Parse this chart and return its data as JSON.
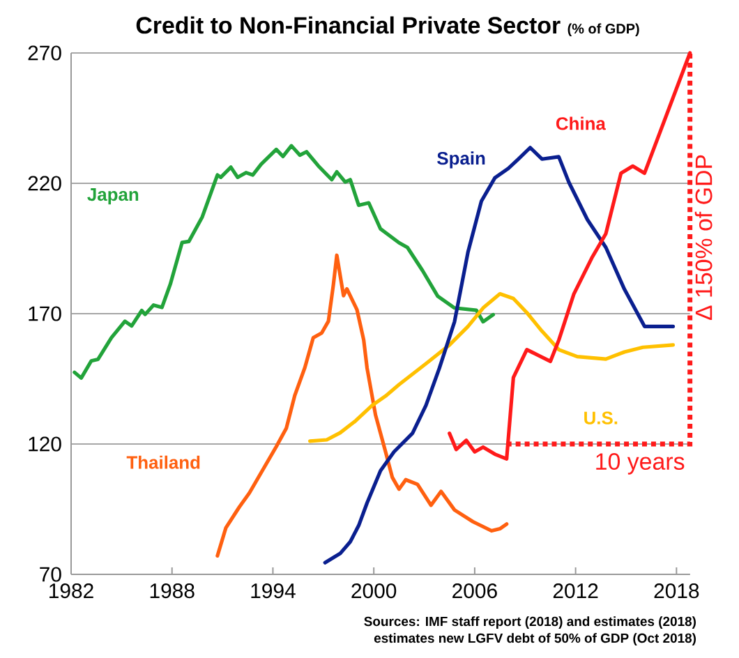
{
  "chart_data": {
    "type": "line",
    "title": "Credit to Non-Financial Private Sector",
    "subtitle": "(% of GDP)",
    "xlim": [
      1982,
      2018.8
    ],
    "xticks": [
      1982,
      1988,
      1994,
      2000,
      2006,
      2012,
      2018
    ],
    "ylim": [
      70,
      270
    ],
    "yticks": [
      70,
      120,
      170,
      220,
      270
    ],
    "grid": "y",
    "marker": "none",
    "line_style": "solid",
    "series": [
      {
        "name": "Japan",
        "color": "#22a33a",
        "x": [
          1982.2,
          1982.6,
          1983.2,
          1983.6,
          1984.4,
          1985.2,
          1985.6,
          1986.2,
          1986.4,
          1986.9,
          1987.4,
          1987.9,
          1988.6,
          1989.0,
          1989.8,
          1990.7,
          1990.9,
          1991.5,
          1991.9,
          1992.4,
          1992.8,
          1993.3,
          1994.2,
          1994.6,
          1995.1,
          1995.6,
          1996.0,
          1996.7,
          1997.5,
          1997.8,
          1998.3,
          1998.6,
          1999.1,
          1999.7,
          2000.4,
          2001.5,
          2002.0,
          2002.9,
          2003.8,
          2004.8,
          2006.1,
          2006.5,
          2007.1
        ],
        "values": [
          147.5,
          145.3,
          151.9,
          152.5,
          160.8,
          167.1,
          165.3,
          171.2,
          169.7,
          173.3,
          172.4,
          181.3,
          197.3,
          197.7,
          207.1,
          223.2,
          222.3,
          226.2,
          222.3,
          224.1,
          223.2,
          227.3,
          233.0,
          230.3,
          234.4,
          230.8,
          232.1,
          226.7,
          221.4,
          224.4,
          220.5,
          221.4,
          211.6,
          212.5,
          202.5,
          197.2,
          195.4,
          186.5,
          176.7,
          172.2,
          171.3,
          166.9,
          169.6
        ]
      },
      {
        "name": "Thailand",
        "color": "#ff6010",
        "x": [
          1990.7,
          1991.2,
          1992.0,
          1992.6,
          1993.4,
          1994.2,
          1994.8,
          1995.3,
          1995.9,
          1996.4,
          1996.9,
          1997.3,
          1997.6,
          1997.8,
          1998.2,
          1998.4,
          1999.0,
          1999.4,
          1999.6,
          2000.1,
          2000.7,
          2001.1,
          2001.5,
          2001.9,
          2002.6,
          2003.4,
          2004.0,
          2004.8,
          2005.9,
          2007.0,
          2007.5,
          2007.9
        ],
        "values": [
          77.1,
          87.8,
          95.8,
          101.2,
          110.1,
          119.0,
          126.1,
          138.6,
          149.3,
          160.8,
          162.6,
          167.1,
          181.3,
          192.4,
          176.9,
          179.5,
          171.5,
          159.9,
          149.1,
          131.2,
          117.0,
          107.2,
          102.7,
          106.3,
          104.5,
          96.5,
          101.8,
          94.7,
          90.2,
          86.7,
          87.5,
          89.3
        ]
      },
      {
        "name": "U.S.",
        "color": "#ffc000",
        "x": [
          1996.2,
          1997.2,
          1998.0,
          1998.9,
          1999.9,
          2000.7,
          2001.5,
          2003.1,
          2004.5,
          2005.6,
          2006.5,
          2007.5,
          2008.3,
          2009.1,
          2010.0,
          2011.0,
          2012.1,
          2013.8,
          2014.9,
          2016.0,
          2017.8
        ],
        "values": [
          121.1,
          121.6,
          124.3,
          128.8,
          134.8,
          138.4,
          142.8,
          150.8,
          158.0,
          165.1,
          172.2,
          177.6,
          175.8,
          170.4,
          163.3,
          156.2,
          153.5,
          152.6,
          155.3,
          157.1,
          158.0
        ]
      },
      {
        "name": "Spain",
        "color": "#0a1f8f",
        "x": [
          1997.1,
          1998.0,
          1998.6,
          1999.1,
          1999.6,
          2000.4,
          2001.2,
          2002.3,
          2003.1,
          2003.9,
          2004.8,
          2005.6,
          2006.4,
          2007.2,
          2008.0,
          2008.6,
          2009.3,
          2010.0,
          2011.0,
          2011.6,
          2012.7,
          2013.8,
          2014.9,
          2016.1,
          2017.8
        ],
        "values": [
          74.5,
          78.0,
          82.5,
          88.7,
          97.4,
          109.8,
          117.0,
          124.1,
          134.8,
          149.1,
          166.9,
          193.6,
          213.2,
          222.1,
          225.7,
          229.3,
          233.7,
          229.3,
          230.2,
          220.4,
          206.1,
          195.4,
          179.4,
          165.1,
          165.1
        ]
      },
      {
        "name": "China",
        "color": "#ff1a1a",
        "x": [
          2004.5,
          2004.9,
          2005.5,
          2006.0,
          2006.5,
          2007.2,
          2007.9,
          2008.3,
          2009.1,
          2010.5,
          2011.0,
          2011.9,
          2013.0,
          2013.8,
          2014.7,
          2015.4,
          2016.1,
          2018.8
        ],
        "values": [
          124.1,
          117.9,
          121.4,
          117.0,
          118.8,
          116.1,
          114.3,
          145.5,
          156.2,
          151.7,
          159.8,
          177.6,
          191.8,
          200.7,
          223.9,
          226.6,
          223.9,
          270
        ]
      }
    ],
    "annotations": [
      "10 years",
      "Δ 150% of GDP",
      "Sources:  IMF staff report (2018) and estimates (2018)",
      "estimates new LGFV debt of 50% of GDP (Oct 2018)"
    ]
  }
}
